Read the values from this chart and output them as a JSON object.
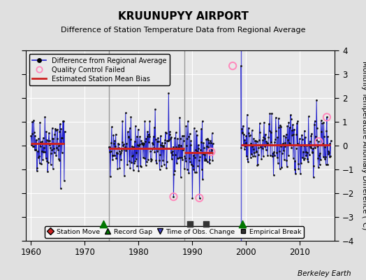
{
  "title": "KRUUNUPYY AIRPORT",
  "subtitle": "Difference of Station Temperature Data from Regional Average",
  "ylabel": "Monthly Temperature Anomaly Difference (°C)",
  "xlim": [
    1959.0,
    2016.5
  ],
  "ylim": [
    -4,
    4
  ],
  "xticks": [
    1960,
    1970,
    1980,
    1990,
    2000,
    2010
  ],
  "background_color": "#e0e0e0",
  "plot_bg_color": "#e8e8e8",
  "grid_color": "#ffffff",
  "bias_segments": [
    {
      "start": 1960.0,
      "end": 1966.2,
      "bias": 0.08
    },
    {
      "start": 1974.5,
      "end": 1988.5,
      "bias": -0.12
    },
    {
      "start": 1988.5,
      "end": 1993.8,
      "bias": -0.28
    },
    {
      "start": 1999.0,
      "end": 2015.7,
      "bias": 0.04
    }
  ],
  "vertical_lines": [
    {
      "x": 1974.5,
      "color": "#999999"
    },
    {
      "x": 1988.5,
      "color": "#999999"
    },
    {
      "x": 1999.0,
      "color": "#5555dd"
    }
  ],
  "record_gaps": [
    1973.5,
    1999.3
  ],
  "empirical_breaks": [
    1989.5,
    1992.5
  ],
  "qc_failed_approx": [
    1986.5,
    1991.3,
    1993.5,
    1997.5,
    2013.5,
    2015.0
  ],
  "spike_1997": 3.35,
  "spike_neg_1991": -2.2,
  "spike_neg_1986": -2.15,
  "spike_neg_1965": -1.8,
  "data_segments": [
    {
      "start": 1960.0,
      "end": 1966.3,
      "bias": 0.1
    },
    {
      "start": 1974.5,
      "end": 1988.5,
      "bias": -0.1
    },
    {
      "start": 1988.5,
      "end": 1993.9,
      "bias": -0.25
    },
    {
      "start": 1999.0,
      "end": 2015.8,
      "bias": 0.05
    }
  ],
  "line_color": "#2222cc",
  "dot_color": "#111111",
  "bias_color": "#cc2222",
  "qc_color": "#ff88bb",
  "gap_color": "#007700",
  "break_color": "#333333",
  "obs_change_color": "#4444cc",
  "station_move_color": "#cc2222"
}
